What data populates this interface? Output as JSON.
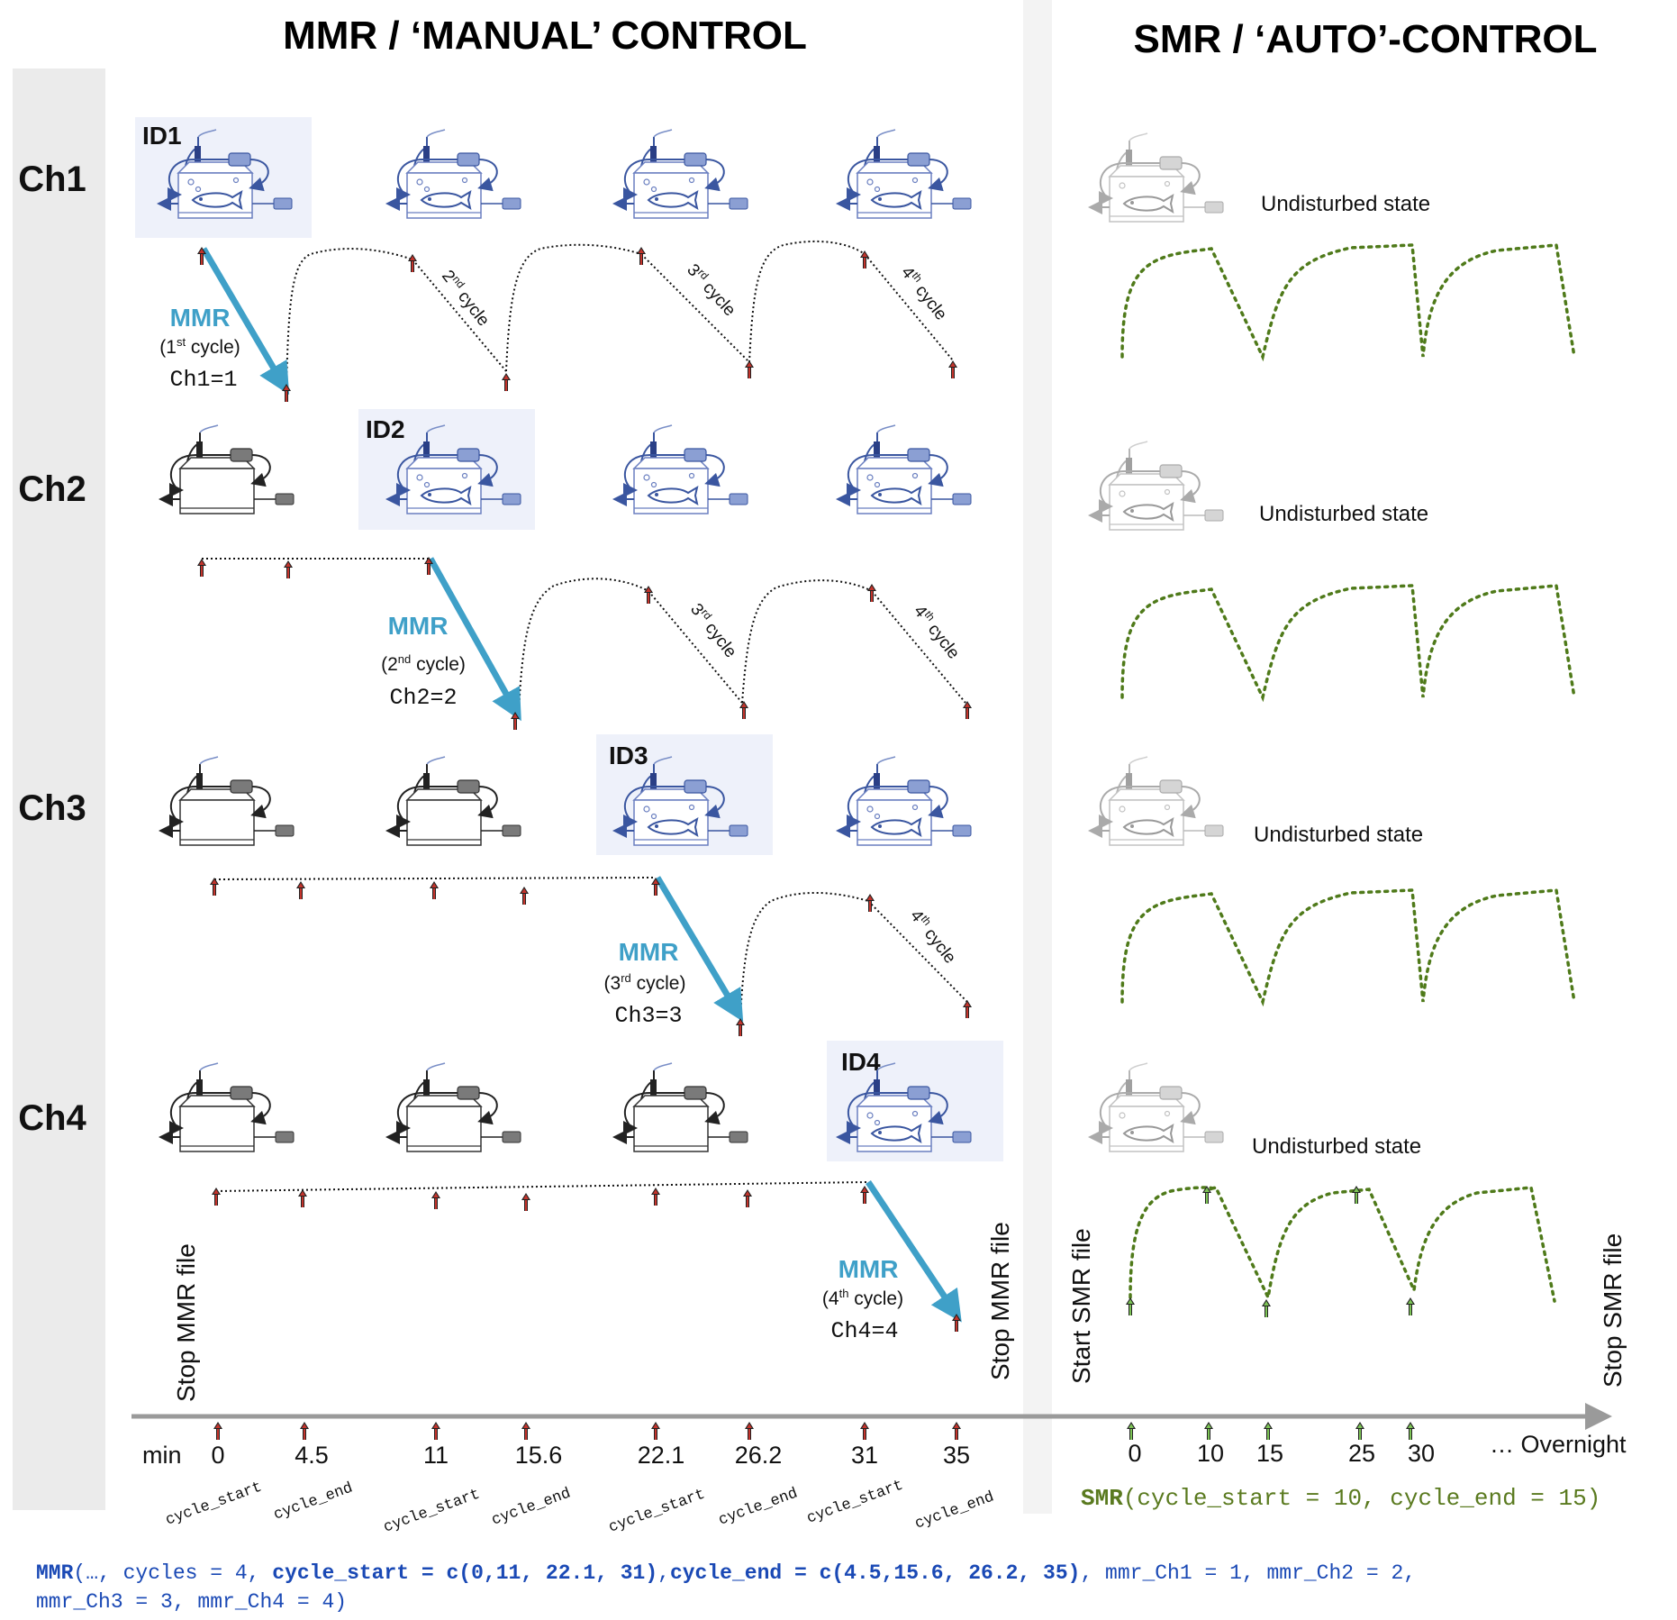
{
  "titles": {
    "mmr": "MMR / ‘MANUAL’ CONTROL",
    "smr": "SMR / ‘AUTO’-CONTROL"
  },
  "channels": [
    "Ch1",
    "Ch2",
    "Ch3",
    "Ch4"
  ],
  "ids": [
    "ID1",
    "ID2",
    "ID3",
    "ID4"
  ],
  "mmr_blocks": [
    {
      "label": "MMR",
      "cycle": "(1",
      "sup": "st",
      "cycle_rest": " cycle)",
      "code": "Ch1=1"
    },
    {
      "label": "MMR",
      "cycle": "(2",
      "sup": "nd",
      "cycle_rest": " cycle)",
      "code": "Ch2=2"
    },
    {
      "label": "MMR",
      "cycle": "(3",
      "sup": "rd",
      "cycle_rest": " cycle)",
      "code": "Ch3=3"
    },
    {
      "label": "MMR",
      "cycle": "(4",
      "sup": "th",
      "cycle_rest": " cycle)",
      "code": "Ch4=4"
    }
  ],
  "cycle_labels": {
    "c2": {
      "num": "2",
      "sup": "nd",
      "word": " cycle"
    },
    "c3": {
      "num": "3",
      "sup": "rd",
      "word": " cycle"
    },
    "c4": {
      "num": "4",
      "sup": "th",
      "word": " cycle"
    }
  },
  "undisturbed": "Undisturbed state",
  "vertical_labels": {
    "stop_mmr": "Stop MMR file",
    "start_smr": "Start SMR file",
    "stop_smr": "Stop SMR file"
  },
  "axis": {
    "unit": "min",
    "mmr_ticks": [
      "0",
      "4.5",
      "11",
      "15.6",
      "22.1",
      "26.2",
      "31",
      "35"
    ],
    "mmr_tick_names": [
      "cycle_start",
      "cycle_end",
      "cycle_start",
      "cycle_end",
      "cycle_start",
      "cycle_end",
      "cycle_start",
      "cycle_end"
    ],
    "smr_ticks": [
      "0",
      "10",
      "15",
      "25",
      "30"
    ],
    "overnight": "… Overnight"
  },
  "commands": {
    "smr_fn": "SMR",
    "smr_args": "(cycle_start = 10, cycle_end = 15)",
    "mmr_line1_parts": [
      "MMR",
      "(…, cycles = 4, ",
      "cycle_start = c(0,11, 22.1, 31)",
      ",",
      "cycle_end = c(4.5,15.6, 26.2, 35)",
      ", mmr_Ch1 = 1, mmr_Ch2 = 2,"
    ],
    "mmr_line2": "mmr_Ch3 = 3, mmr_Ch4 = 4)"
  },
  "colors": {
    "mmr_arrow": "#3fa0c8",
    "smr_curve": "#4f7a1a",
    "highlight_bg": "#eef1fa",
    "chamber_blue": "#3a56a0",
    "panel_grey": "#ebebeb",
    "tick_arrow_red": "#c4342c",
    "tick_arrow_green": "#5aa03a"
  }
}
